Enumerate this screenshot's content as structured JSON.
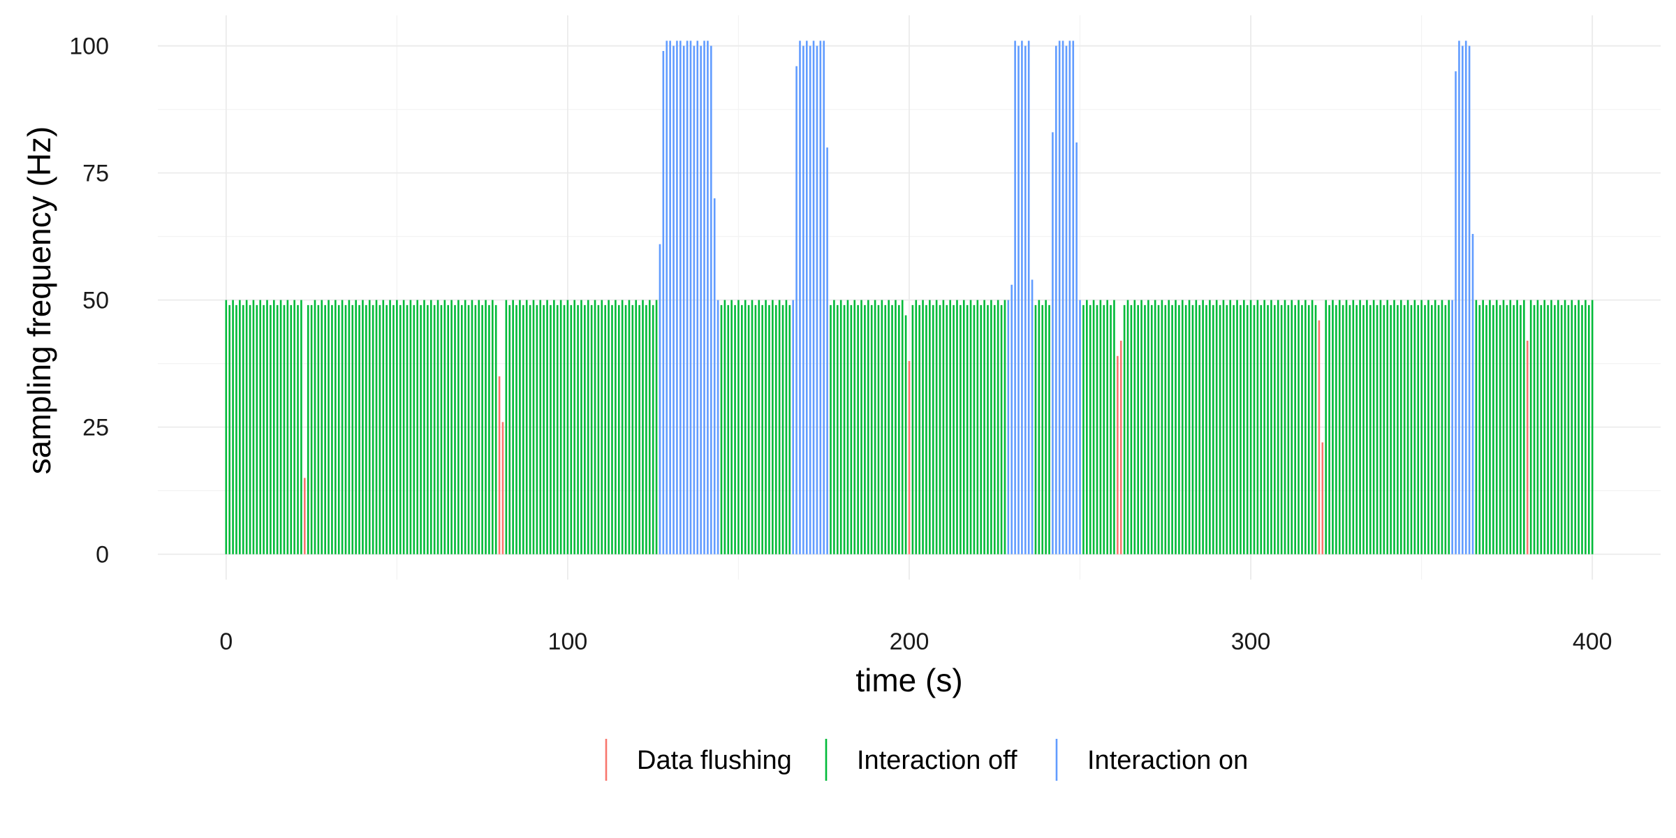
{
  "chart_data": {
    "type": "bar",
    "title": "",
    "xlabel": "time (s)",
    "ylabel": "sampling frequency (Hz)",
    "xlim": [
      -20,
      420
    ],
    "ylim": [
      -5,
      106
    ],
    "x_ticks": [
      0,
      100,
      200,
      300,
      400
    ],
    "y_ticks": [
      0,
      25,
      50,
      75,
      100
    ],
    "grid": true,
    "legend_position": "bottom",
    "colors": {
      "Data flushing": "#F8766D",
      "Interaction off": "#00BA38",
      "Interaction on": "#619CFF"
    },
    "legend": [
      "Data flushing",
      "Interaction off",
      "Interaction on"
    ],
    "series": [
      {
        "name": "Data flushing",
        "x": [
          23,
          80,
          81,
          200,
          261,
          262,
          320,
          321,
          381
        ],
        "values": [
          15,
          35,
          26,
          38,
          39,
          42,
          46,
          22,
          42
        ]
      },
      {
        "name": "Interaction on",
        "x": [
          127,
          128,
          129,
          130,
          131,
          132,
          133,
          134,
          135,
          136,
          137,
          138,
          139,
          140,
          141,
          142,
          143,
          144,
          166,
          167,
          168,
          169,
          170,
          171,
          172,
          173,
          174,
          175,
          176,
          229,
          230,
          231,
          232,
          233,
          234,
          235,
          236,
          242,
          243,
          244,
          245,
          246,
          247,
          248,
          249,
          250,
          359,
          360,
          361,
          362,
          363,
          364,
          365
        ],
        "values": [
          61,
          99,
          101,
          101,
          100,
          101,
          101,
          100,
          101,
          101,
          100,
          101,
          100,
          101,
          101,
          100,
          70,
          50,
          50,
          96,
          101,
          100,
          101,
          100,
          101,
          100,
          101,
          101,
          80,
          50,
          53,
          101,
          100,
          101,
          100,
          101,
          54,
          83,
          100,
          101,
          101,
          100,
          101,
          101,
          81,
          50,
          50,
          95,
          101,
          100,
          101,
          100,
          63
        ]
      },
      {
        "name": "Interaction off",
        "note_range": [
          0,
          400
        ],
        "base_value": 50,
        "alt_value": 49,
        "excluded_x": [
          23,
          80,
          81,
          200,
          261,
          262,
          320,
          321,
          381,
          127,
          128,
          129,
          130,
          131,
          132,
          133,
          134,
          135,
          136,
          137,
          138,
          139,
          140,
          141,
          142,
          143,
          144,
          166,
          167,
          168,
          169,
          170,
          171,
          172,
          173,
          174,
          175,
          176,
          229,
          230,
          231,
          232,
          233,
          234,
          235,
          236,
          242,
          243,
          244,
          245,
          246,
          247,
          248,
          249,
          250,
          359,
          360,
          361,
          362,
          363,
          364,
          365
        ],
        "special": {
          "145": 49,
          "199": 47,
          "78": 50,
          "24": 49
        }
      }
    ]
  }
}
